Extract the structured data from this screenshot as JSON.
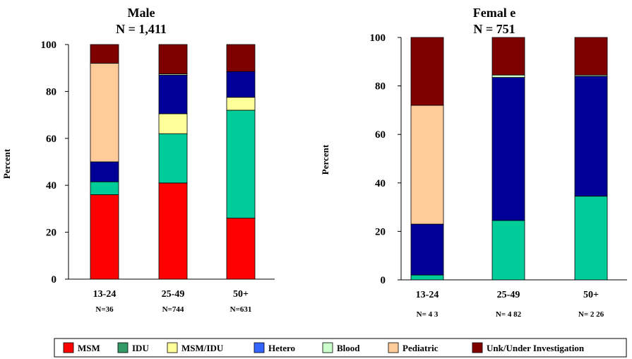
{
  "legend": [
    {
      "label": "MSM",
      "color": "#ff0000"
    },
    {
      "label": "IDU",
      "color": "#339966"
    },
    {
      "label": "MSM/IDU",
      "color": "#ffff99"
    },
    {
      "label": "Hetero",
      "color": "#3366ff"
    },
    {
      "label": "Blood",
      "color": "#ccffcc"
    },
    {
      "label": "Pediatric",
      "color": "#ffcc99"
    },
    {
      "label": "Unk/Under Investigation",
      "color": "#800000"
    }
  ],
  "chart_data": [
    {
      "type": "bar",
      "stacked": true,
      "title": "Male",
      "subtitle": "N = 1,411",
      "ylabel": "Percent",
      "ylim": [
        0,
        100
      ],
      "yticks": [
        "0",
        "20",
        "40",
        "60",
        "80",
        "100"
      ],
      "categories": [
        "13-24",
        "25-49",
        "50+"
      ],
      "category_n": [
        "N=36",
        "N=744",
        "N=631"
      ],
      "segment_colors": [
        "#ff0000",
        "#00cc99",
        "#ffff99",
        "#000099",
        "#ccffcc",
        "#ffcc99",
        "#800000"
      ],
      "series": [
        {
          "name": "MSM",
          "values": [
            36,
            41,
            26
          ]
        },
        {
          "name": "IDU",
          "values": [
            5.5,
            21,
            46
          ]
        },
        {
          "name": "MSM/IDU",
          "values": [
            0,
            8.5,
            5.5
          ]
        },
        {
          "name": "Hetero",
          "values": [
            8.5,
            16.5,
            11
          ]
        },
        {
          "name": "Blood",
          "values": [
            0,
            0.5,
            0
          ]
        },
        {
          "name": "Pediatric",
          "values": [
            42,
            0,
            0
          ]
        },
        {
          "name": "Unk/Under Investigation",
          "values": [
            8,
            12.5,
            11.5
          ]
        }
      ]
    },
    {
      "type": "bar",
      "stacked": true,
      "title": "Femal e",
      "subtitle": "N = 751",
      "ylabel": "Percent",
      "ylim": [
        0,
        100
      ],
      "yticks": [
        "0",
        "20",
        "40",
        "60",
        "80",
        "100"
      ],
      "categories": [
        "13-24",
        "25-49",
        "50+"
      ],
      "category_n": [
        "N= 4 3",
        "N= 4 82",
        "N= 2 26"
      ],
      "segment_colors": [
        "#ff0000",
        "#00cc99",
        "#ffff99",
        "#000099",
        "#ccffcc",
        "#ffcc99",
        "#800000"
      ],
      "series": [
        {
          "name": "MSM",
          "values": [
            0,
            0,
            0
          ]
        },
        {
          "name": "IDU",
          "values": [
            2,
            24.5,
            34.5
          ]
        },
        {
          "name": "MSM/IDU",
          "values": [
            0,
            0,
            0
          ]
        },
        {
          "name": "Hetero",
          "values": [
            21,
            59,
            49.5
          ]
        },
        {
          "name": "Blood",
          "values": [
            0,
            1,
            0.5
          ]
        },
        {
          "name": "Pediatric",
          "values": [
            49,
            0,
            0
          ]
        },
        {
          "name": "Unk/Under Investigation",
          "values": [
            28,
            15.5,
            15.5
          ]
        }
      ]
    }
  ]
}
